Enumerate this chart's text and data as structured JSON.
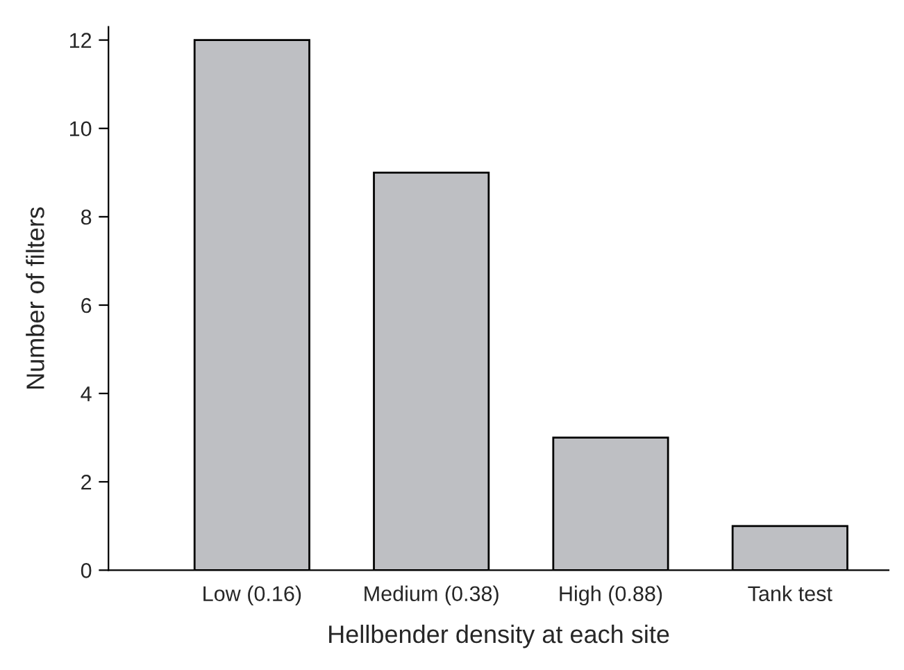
{
  "chart_data": {
    "type": "bar",
    "xlabel": "Hellbender density at each site",
    "ylabel": "Number of filters",
    "categories": [
      "Low (0.16)",
      "Medium (0.38)",
      "High (0.88)",
      "Tank test"
    ],
    "values": [
      12,
      9,
      3,
      1
    ],
    "color": "#bebfc3",
    "ylim": [
      0,
      12.3
    ],
    "yticks": [
      0,
      2,
      4,
      6,
      8,
      10,
      12
    ],
    "grid": false,
    "legend": false
  }
}
